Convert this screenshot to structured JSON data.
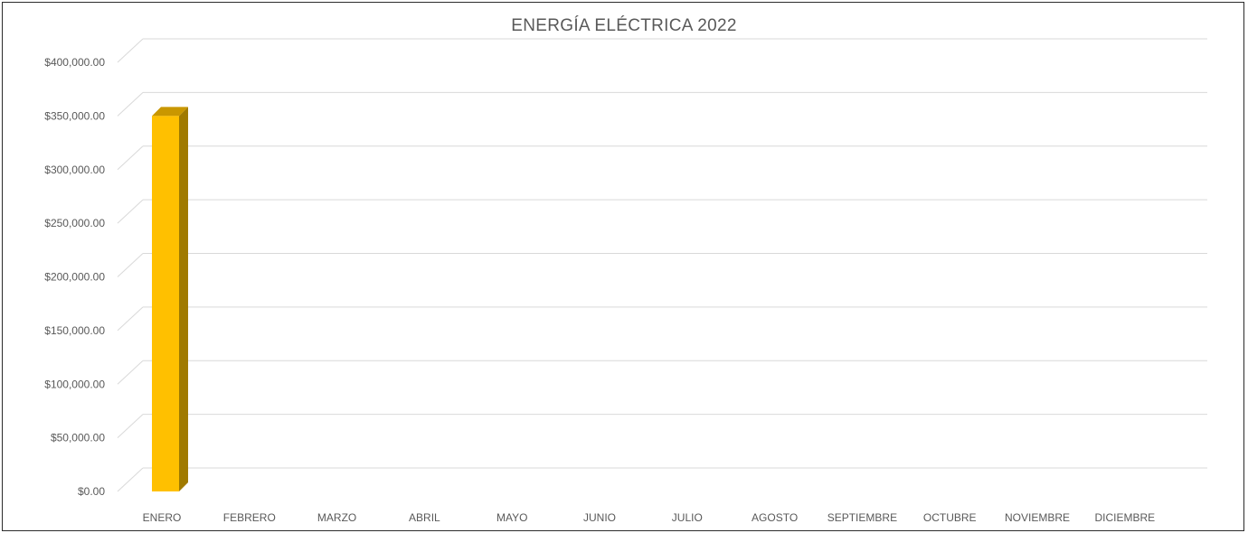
{
  "chart_data": {
    "type": "bar",
    "title": "ENERGÍA ELÉCTRICA 2022",
    "categories": [
      "ENERO",
      "FEBRERO",
      "MARZO",
      "ABRIL",
      "MAYO",
      "JUNIO",
      "JULIO",
      "AGOSTO",
      "SEPTIEMBRE",
      "OCTUBRE",
      "NOVIEMBRE",
      "DICIEMBRE"
    ],
    "values": [
      350000,
      0,
      0,
      0,
      0,
      0,
      0,
      0,
      0,
      0,
      0,
      0
    ],
    "ylim": [
      0,
      400000
    ],
    "yticks": [
      "$0.00",
      "$50,000.00",
      "$100,000.00",
      "$150,000.00",
      "$200,000.00",
      "$250,000.00",
      "$300,000.00",
      "$350,000.00",
      "$400,000.00"
    ],
    "grid": true,
    "style": "3d-column",
    "colors": {
      "bar_front": "#FFC000",
      "bar_side": "#A07A00",
      "bar_top": "#C99700",
      "grid": "#D9D9D9",
      "text": "#595959"
    }
  }
}
